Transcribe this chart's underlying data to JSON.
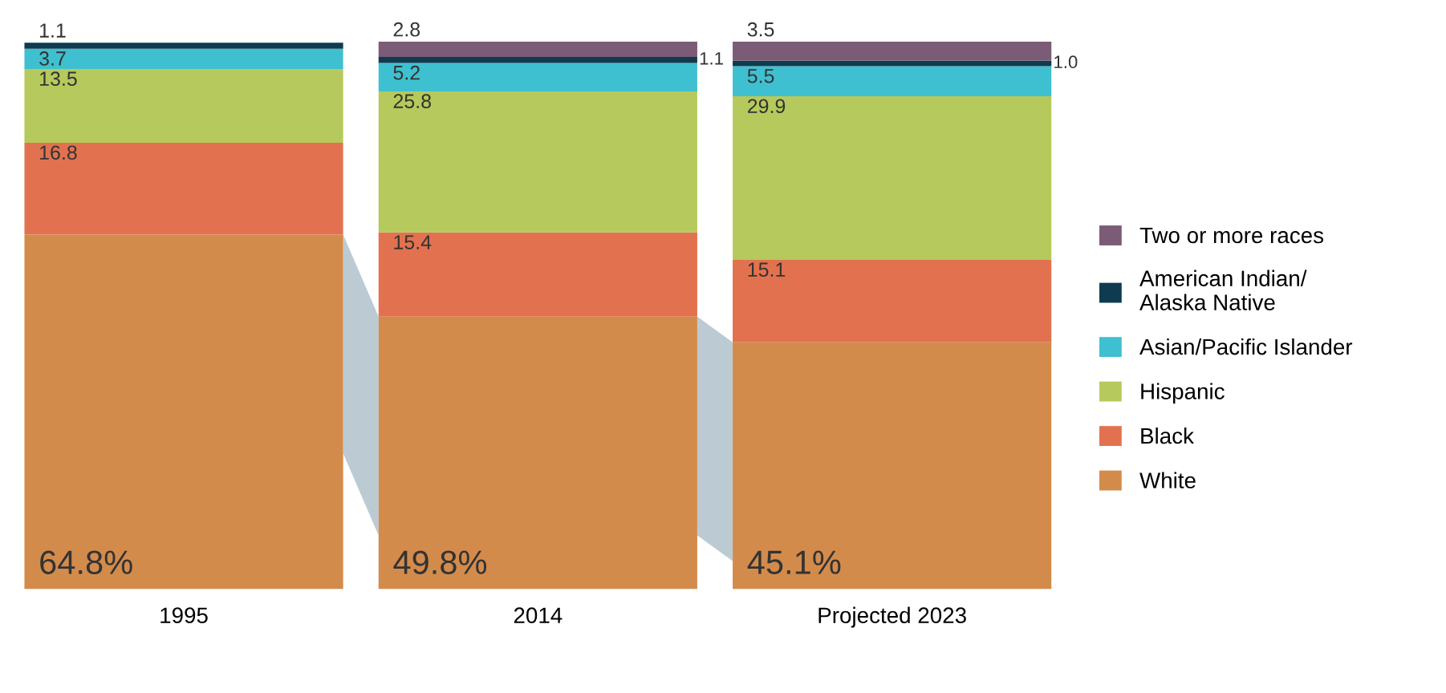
{
  "chart_data": {
    "type": "bar",
    "stacked": true,
    "categories": [
      "1995",
      "2014",
      "Projected 2023"
    ],
    "series": [
      {
        "name": "White",
        "color": "#d38b4c",
        "values": [
          64.8,
          49.8,
          45.1
        ],
        "value_labels": [
          "64.8%",
          "49.8%",
          "45.1%"
        ]
      },
      {
        "name": "Black",
        "color": "#e2724f",
        "values": [
          16.8,
          15.4,
          15.1
        ],
        "value_labels": [
          "16.8",
          "15.4",
          "15.1"
        ]
      },
      {
        "name": "Hispanic",
        "color": "#b6c95c",
        "values": [
          13.5,
          25.8,
          29.9
        ],
        "value_labels": [
          "13.5",
          "25.8",
          "29.9"
        ]
      },
      {
        "name": "Asian/Pacific Islander",
        "color": "#3fc0d0",
        "values": [
          3.7,
          5.2,
          5.5
        ],
        "value_labels": [
          "3.7",
          "5.2",
          "5.5"
        ]
      },
      {
        "name": "American Indian/\nAlaska Native",
        "color": "#0e3b4f",
        "values": [
          1.1,
          1.1,
          1.0
        ],
        "value_labels": [
          "1.1",
          "1.1",
          "1.0"
        ]
      },
      {
        "name": "Two or more races",
        "color": "#7b5b76",
        "values": [
          null,
          2.8,
          3.5
        ],
        "value_labels": [
          null,
          "2.8",
          "3.5"
        ]
      }
    ],
    "legend": "right"
  }
}
